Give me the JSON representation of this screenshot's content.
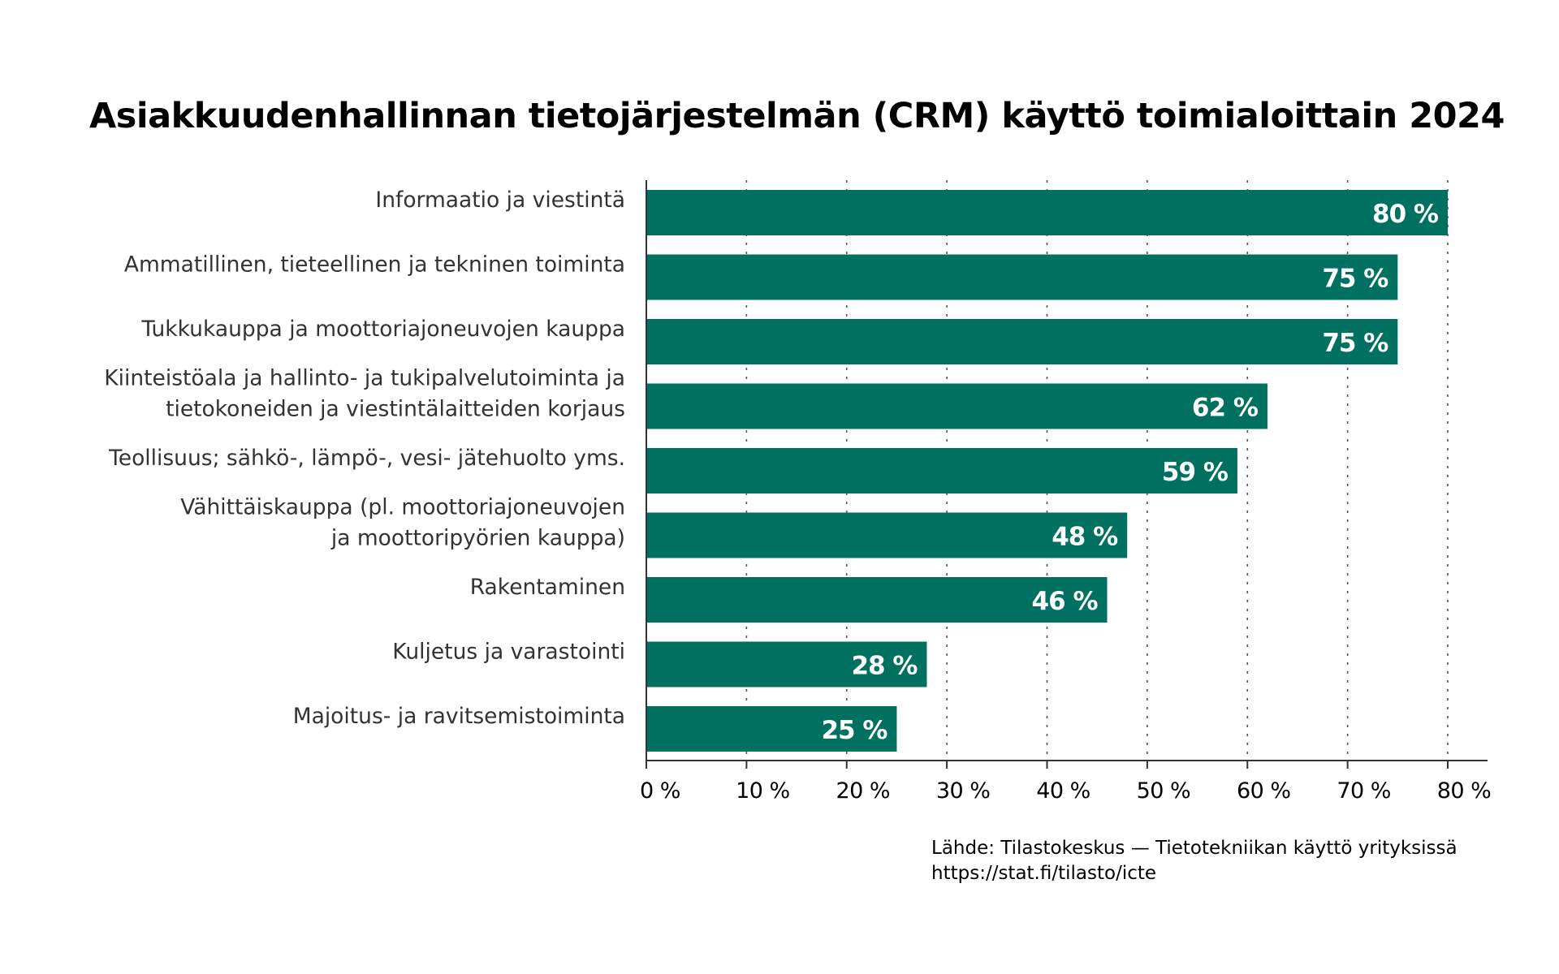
{
  "chart_data": {
    "type": "bar",
    "orientation": "horizontal",
    "title": "Asiakkuudenhallinnan tietojärjestelmän (CRM) käyttö toimialoittain 2024",
    "categories": [
      [
        "Informaatio ja viestintä"
      ],
      [
        "Ammatillinen, tieteellinen ja tekninen toiminta"
      ],
      [
        "Tukkukauppa ja moottoriajoneuvojen kauppa"
      ],
      [
        "Kiinteistöala ja hallinto- ja tukipalvelutoiminta ja",
        "tietokoneiden ja viestintälaitteiden korjaus"
      ],
      [
        "Teollisuus; sähkö-, lämpö-, vesi- jätehuolto yms."
      ],
      [
        "Vähittäiskauppa (pl. moottoriajoneuvojen",
        "ja moottoripyörien kauppa)"
      ],
      [
        "Rakentaminen"
      ],
      [
        "Kuljetus ja varastointi"
      ],
      [
        "Majoitus- ja ravitsemistoiminta"
      ]
    ],
    "values": [
      80,
      75,
      75,
      62,
      59,
      48,
      46,
      28,
      25
    ],
    "value_labels": [
      "80 %",
      "75 %",
      "75 %",
      "62 %",
      "59 %",
      "48 %",
      "46 %",
      "28 %",
      "25 %"
    ],
    "xlim": [
      0,
      80
    ],
    "xticks": [
      0,
      10,
      20,
      30,
      40,
      50,
      60,
      70,
      80
    ],
    "xtick_labels": [
      "0 %",
      "10 %",
      "20 %",
      "30 %",
      "40 %",
      "50 %",
      "60 %",
      "70 %",
      "80 %"
    ],
    "xlabel": "",
    "ylabel": "",
    "grid": "vertical dotted",
    "bar_color": "#007161",
    "label_color": "#ffffff"
  },
  "source": {
    "line1": "Lähde: Tilastokeskus — Tietotekniikan käyttö yrityksissä",
    "line2": "https://stat.fi/tilasto/icte"
  }
}
